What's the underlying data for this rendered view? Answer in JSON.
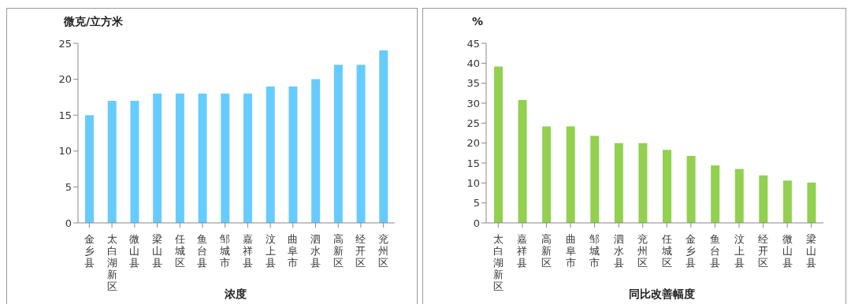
{
  "chart_data": [
    {
      "type": "bar",
      "ylabel": "微克/立方米",
      "xlabel": "浓度",
      "categories": [
        "金乡县",
        "太白湖新区",
        "微山县",
        "梁山县",
        "任城区",
        "鱼台县",
        "邹城市",
        "嘉祥县",
        "汶上县",
        "曲阜市",
        "泗水县",
        "高新区",
        "经开区",
        "兖州区"
      ],
      "values": [
        15,
        17,
        17,
        18,
        18,
        18,
        18,
        18,
        19,
        19,
        20,
        22,
        22,
        24
      ],
      "color": "#66ccff",
      "ylim": [
        0,
        25
      ],
      "yticks": [
        0,
        5,
        10,
        15,
        20,
        25
      ],
      "grid": false,
      "legend": false
    },
    {
      "type": "bar",
      "ylabel": "%",
      "xlabel": "同比改善幅度",
      "categories": [
        "太白湖新区",
        "嘉祥县",
        "高新区",
        "曲阜市",
        "邹城市",
        "泗水县",
        "兖州区",
        "任城区",
        "金乡县",
        "鱼台县",
        "汶上县",
        "经开区",
        "微山县",
        "梁山县"
      ],
      "values": [
        39.2,
        30.8,
        24.2,
        24.2,
        21.8,
        20.0,
        20.0,
        18.3,
        16.8,
        14.4,
        13.5,
        11.9,
        10.6,
        10.1
      ],
      "color": "#92d050",
      "ylim": [
        0,
        45
      ],
      "yticks": [
        0,
        5,
        10,
        15,
        20,
        25,
        30,
        35,
        40,
        45
      ],
      "grid": false,
      "legend": false
    }
  ]
}
